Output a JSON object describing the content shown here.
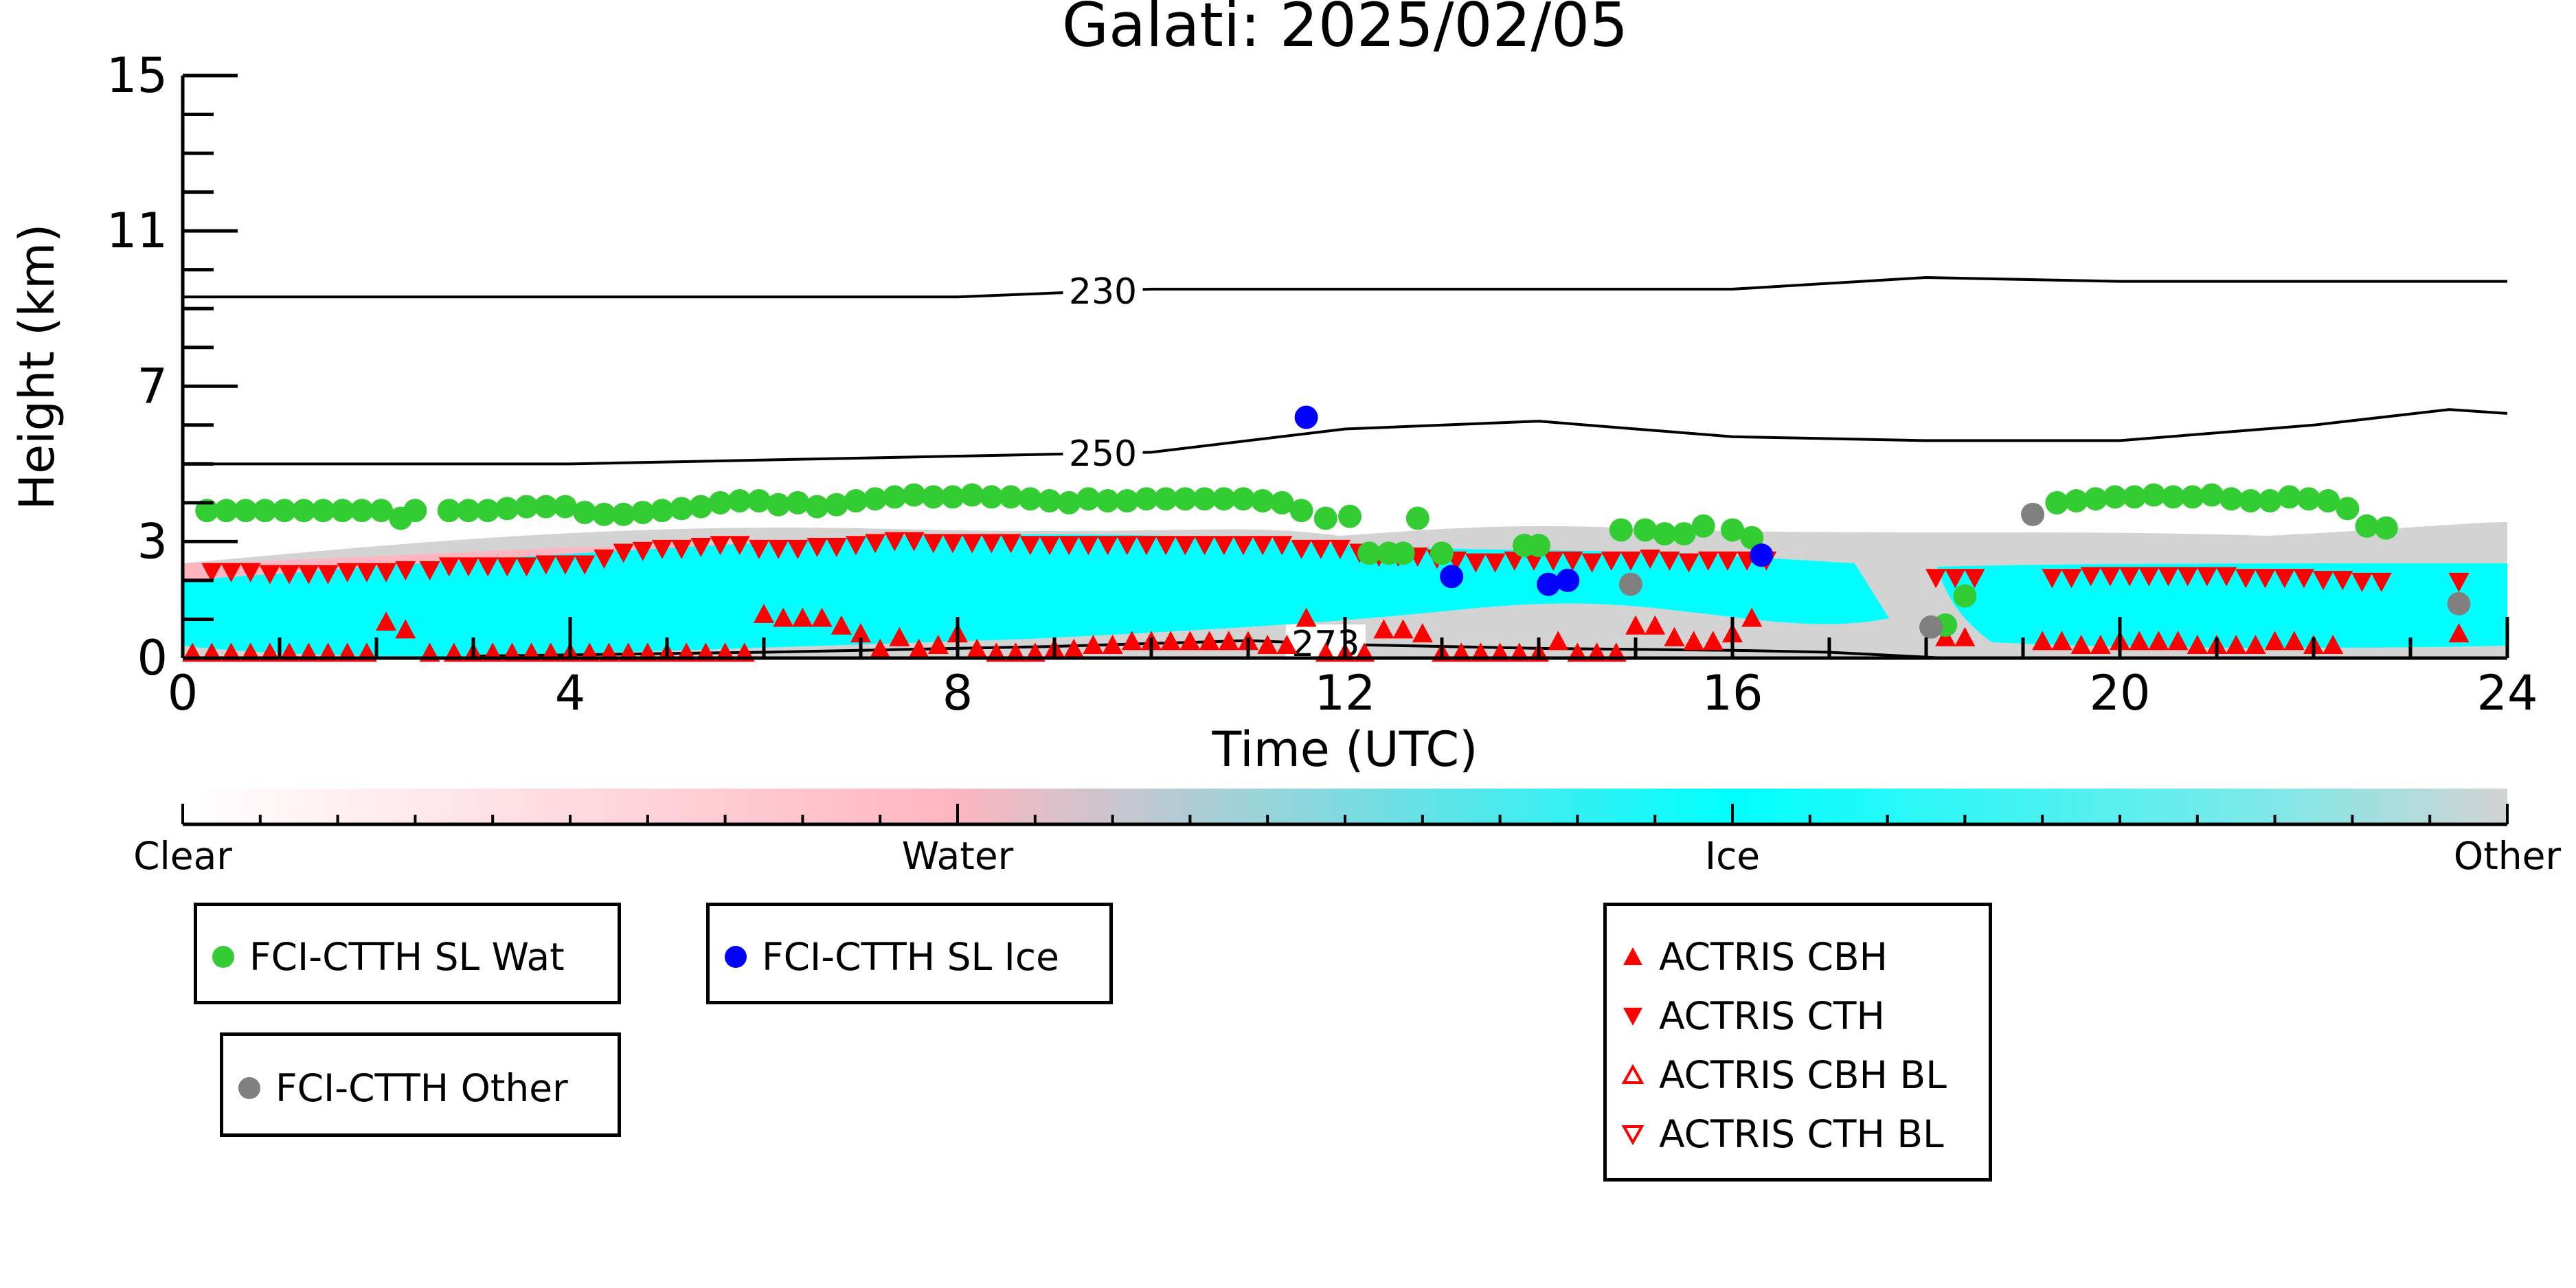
{
  "chart_data": {
    "type": "scatter",
    "title": "Galati: 2025/02/05",
    "xlabel": "Time (UTC)",
    "ylabel": "Height (km)",
    "xlim": [
      0,
      24
    ],
    "ylim": [
      0,
      15
    ],
    "xticks": [
      0,
      4,
      8,
      12,
      16,
      20,
      24
    ],
    "yticks": [
      0,
      3,
      7,
      11,
      15
    ],
    "colorbar": {
      "labels": [
        "Clear",
        "Water",
        "Ice",
        "Other"
      ],
      "colors": [
        "#ffffff",
        "#ffb6c1",
        "#00ffff",
        "#d3d3d3"
      ]
    },
    "contours": [
      {
        "label": "230",
        "x": [
          0,
          4,
          8,
          10,
          12,
          14,
          16,
          18,
          20,
          22,
          24
        ],
        "y": [
          9.3,
          9.3,
          9.3,
          9.5,
          9.5,
          9.5,
          9.5,
          9.8,
          9.7,
          9.7,
          9.7
        ],
        "label_x": 9.5
      },
      {
        "label": "250",
        "x": [
          0,
          4,
          8,
          10,
          12,
          14,
          16,
          18,
          20,
          22,
          23.4,
          24
        ],
        "y": [
          5.0,
          5.0,
          5.2,
          5.3,
          5.9,
          6.1,
          5.7,
          5.6,
          5.6,
          6.0,
          6.4,
          6.3
        ],
        "label_x": 9.5
      },
      {
        "label": "273",
        "x": [
          3,
          6,
          9,
          11,
          12,
          14,
          16,
          17,
          18.2
        ],
        "y": [
          0.05,
          0.15,
          0.3,
          0.45,
          0.35,
          0.25,
          0.2,
          0.15,
          0.0
        ],
        "label_x": 11.8
      }
    ],
    "series": [
      {
        "name": "FCI-CTTH SL Wat",
        "color": "#33cc33",
        "marker": "circle",
        "x": [
          0.25,
          0.45,
          0.65,
          0.85,
          1.05,
          1.25,
          1.45,
          1.65,
          1.85,
          2.05,
          2.25,
          2.4,
          2.75,
          2.95,
          3.15,
          3.35,
          3.55,
          3.75,
          3.95,
          4.15,
          4.35,
          4.55,
          4.75,
          4.95,
          5.15,
          5.35,
          5.55,
          5.75,
          5.95,
          6.15,
          6.35,
          6.55,
          6.75,
          6.95,
          7.15,
          7.35,
          7.55,
          7.75,
          7.95,
          8.15,
          8.35,
          8.55,
          8.75,
          8.95,
          9.15,
          9.35,
          9.55,
          9.75,
          9.95,
          10.15,
          10.35,
          10.55,
          10.75,
          10.95,
          11.15,
          11.35,
          11.55,
          11.8,
          12.05,
          12.25,
          12.45,
          12.6,
          12.75,
          13.0,
          13.85,
          14.0,
          14.85,
          15.1,
          15.3,
          15.5,
          15.7,
          16.0,
          16.2,
          18.2,
          18.4,
          19.35,
          19.55,
          19.75,
          19.95,
          20.15,
          20.35,
          20.55,
          20.75,
          20.95,
          21.15,
          21.35,
          21.55,
          21.75,
          21.95,
          22.15,
          22.35,
          22.55,
          22.75
        ],
        "y": [
          3.8,
          3.8,
          3.8,
          3.8,
          3.8,
          3.8,
          3.8,
          3.8,
          3.8,
          3.8,
          3.6,
          3.8,
          3.8,
          3.8,
          3.8,
          3.85,
          3.9,
          3.9,
          3.9,
          3.75,
          3.7,
          3.7,
          3.75,
          3.8,
          3.85,
          3.9,
          4.0,
          4.05,
          4.05,
          3.95,
          4.0,
          3.9,
          3.95,
          4.05,
          4.1,
          4.15,
          4.2,
          4.15,
          4.15,
          4.2,
          4.15,
          4.15,
          4.1,
          4.05,
          4.0,
          4.1,
          4.05,
          4.05,
          4.1,
          4.1,
          4.1,
          4.1,
          4.1,
          4.1,
          4.05,
          4.0,
          3.8,
          3.6,
          3.65,
          2.7,
          2.7,
          2.7,
          3.6,
          2.7,
          2.9,
          2.9,
          3.3,
          3.3,
          3.2,
          3.2,
          3.4,
          3.3,
          3.1,
          0.85,
          1.6,
          4.0,
          4.05,
          4.1,
          4.15,
          4.15,
          4.2,
          4.15,
          4.15,
          4.2,
          4.1,
          4.05,
          4.05,
          4.15,
          4.1,
          4.05,
          3.85,
          3.4,
          3.35
        ]
      },
      {
        "name": "FCI-CTTH SL Ice",
        "color": "#0000ff",
        "marker": "circle",
        "x": [
          11.6,
          13.1,
          14.1,
          14.3,
          16.3
        ],
        "y": [
          6.2,
          2.1,
          1.9,
          2.0,
          2.65
        ]
      },
      {
        "name": "FCI-CTTH Other",
        "color": "#808080",
        "marker": "circle",
        "x": [
          14.95,
          18.05,
          19.1,
          23.5
        ],
        "y": [
          1.9,
          0.8,
          3.7,
          1.4
        ]
      },
      {
        "name": "ACTRIS CBH",
        "color": "#ff0000",
        "marker": "triangle-up",
        "x": [
          0.1,
          0.3,
          0.5,
          0.7,
          0.9,
          1.1,
          1.3,
          1.5,
          1.7,
          1.9,
          2.1,
          2.3,
          2.55,
          2.8,
          3.0,
          3.2,
          3.4,
          3.6,
          3.8,
          4.0,
          4.2,
          4.4,
          4.6,
          4.8,
          5.0,
          5.2,
          5.4,
          5.6,
          5.8,
          6.0,
          6.2,
          6.4,
          6.6,
          6.8,
          7.0,
          7.2,
          7.4,
          7.6,
          7.8,
          8.0,
          8.2,
          8.4,
          8.6,
          8.8,
          9.0,
          9.2,
          9.4,
          9.6,
          9.8,
          10.0,
          10.2,
          10.4,
          10.6,
          10.8,
          11.0,
          11.2,
          11.4,
          11.6,
          11.8,
          12.0,
          12.2,
          12.4,
          12.6,
          12.8,
          13.0,
          13.2,
          13.4,
          13.6,
          13.8,
          14.0,
          14.2,
          14.4,
          14.6,
          14.8,
          15.0,
          15.2,
          15.4,
          15.6,
          15.8,
          16.0,
          16.2,
          18.2,
          18.4,
          19.2,
          19.4,
          19.6,
          19.8,
          20.0,
          20.2,
          20.4,
          20.6,
          20.8,
          21.0,
          21.2,
          21.4,
          21.6,
          21.8,
          22.0,
          22.2,
          23.5
        ],
        "y": [
          0.1,
          0.1,
          0.1,
          0.1,
          0.1,
          0.1,
          0.1,
          0.1,
          0.1,
          0.1,
          0.9,
          0.7,
          0.1,
          0.1,
          0.1,
          0.1,
          0.1,
          0.1,
          0.1,
          0.1,
          0.1,
          0.1,
          0.1,
          0.1,
          0.1,
          0.1,
          0.1,
          0.1,
          0.1,
          1.1,
          1.0,
          1.0,
          1.0,
          0.8,
          0.6,
          0.2,
          0.5,
          0.2,
          0.3,
          0.6,
          0.2,
          0.1,
          0.1,
          0.1,
          0.2,
          0.2,
          0.3,
          0.3,
          0.4,
          0.4,
          0.4,
          0.4,
          0.4,
          0.4,
          0.4,
          0.3,
          0.3,
          1.0,
          0.1,
          0.1,
          0.1,
          0.7,
          0.7,
          0.6,
          0.1,
          0.1,
          0.1,
          0.1,
          0.1,
          0.1,
          0.4,
          0.1,
          0.1,
          0.1,
          0.8,
          0.8,
          0.5,
          0.4,
          0.4,
          0.6,
          1.0,
          0.5,
          0.5,
          0.4,
          0.4,
          0.3,
          0.3,
          0.4,
          0.4,
          0.4,
          0.4,
          0.3,
          0.3,
          0.3,
          0.3,
          0.4,
          0.4,
          0.3,
          0.3,
          0.6
        ]
      },
      {
        "name": "ACTRIS CTH",
        "color": "#ff0000",
        "marker": "triangle-down",
        "x": [
          0.3,
          0.5,
          0.7,
          0.9,
          1.1,
          1.3,
          1.5,
          1.7,
          1.9,
          2.1,
          2.3,
          2.55,
          2.75,
          2.95,
          3.15,
          3.35,
          3.55,
          3.75,
          3.95,
          4.15,
          4.35,
          4.55,
          4.75,
          4.95,
          5.15,
          5.35,
          5.55,
          5.75,
          5.95,
          6.15,
          6.35,
          6.55,
          6.75,
          6.95,
          7.15,
          7.35,
          7.55,
          7.75,
          7.95,
          8.15,
          8.35,
          8.55,
          8.75,
          8.95,
          9.15,
          9.35,
          9.55,
          9.75,
          9.95,
          10.15,
          10.35,
          10.55,
          10.75,
          10.95,
          11.15,
          11.35,
          11.55,
          11.75,
          11.95,
          12.15,
          12.35,
          12.55,
          12.75,
          12.95,
          13.15,
          13.35,
          13.55,
          13.75,
          13.95,
          14.15,
          14.35,
          14.55,
          14.75,
          14.95,
          15.15,
          15.35,
          15.55,
          15.75,
          15.95,
          16.15,
          16.35,
          18.1,
          18.3,
          18.5,
          19.3,
          19.5,
          19.7,
          19.9,
          20.1,
          20.3,
          20.5,
          20.7,
          20.9,
          21.1,
          21.3,
          21.5,
          21.7,
          21.9,
          22.1,
          22.3,
          22.5,
          22.7,
          23.5
        ],
        "y": [
          2.25,
          2.25,
          2.25,
          2.2,
          2.2,
          2.2,
          2.2,
          2.25,
          2.25,
          2.25,
          2.3,
          2.3,
          2.4,
          2.4,
          2.4,
          2.4,
          2.4,
          2.45,
          2.45,
          2.45,
          2.6,
          2.75,
          2.8,
          2.85,
          2.85,
          2.9,
          2.95,
          2.95,
          2.85,
          2.85,
          2.85,
          2.9,
          2.9,
          2.95,
          3.0,
          3.05,
          3.05,
          3.0,
          3.0,
          3.0,
          3.0,
          3.0,
          2.95,
          2.95,
          2.95,
          2.95,
          2.95,
          2.95,
          2.95,
          2.95,
          2.95,
          2.95,
          2.95,
          2.95,
          2.95,
          2.95,
          2.85,
          2.85,
          2.85,
          2.75,
          2.65,
          2.65,
          2.65,
          2.6,
          2.55,
          2.5,
          2.5,
          2.55,
          2.55,
          2.55,
          2.55,
          2.5,
          2.55,
          2.55,
          2.6,
          2.55,
          2.5,
          2.55,
          2.55,
          2.55,
          2.55,
          2.1,
          2.1,
          2.1,
          2.1,
          2.1,
          2.15,
          2.15,
          2.15,
          2.15,
          2.15,
          2.15,
          2.15,
          2.15,
          2.1,
          2.1,
          2.1,
          2.1,
          2.05,
          2.05,
          2.0,
          2.0,
          2.0
        ]
      },
      {
        "name": "ACTRIS CBH BL",
        "color": "#ff0000",
        "marker": "triangle-up-open",
        "x": [],
        "y": []
      },
      {
        "name": "ACTRIS CTH BL",
        "color": "#ff0000",
        "marker": "triangle-down-open",
        "x": [],
        "y": []
      }
    ]
  }
}
